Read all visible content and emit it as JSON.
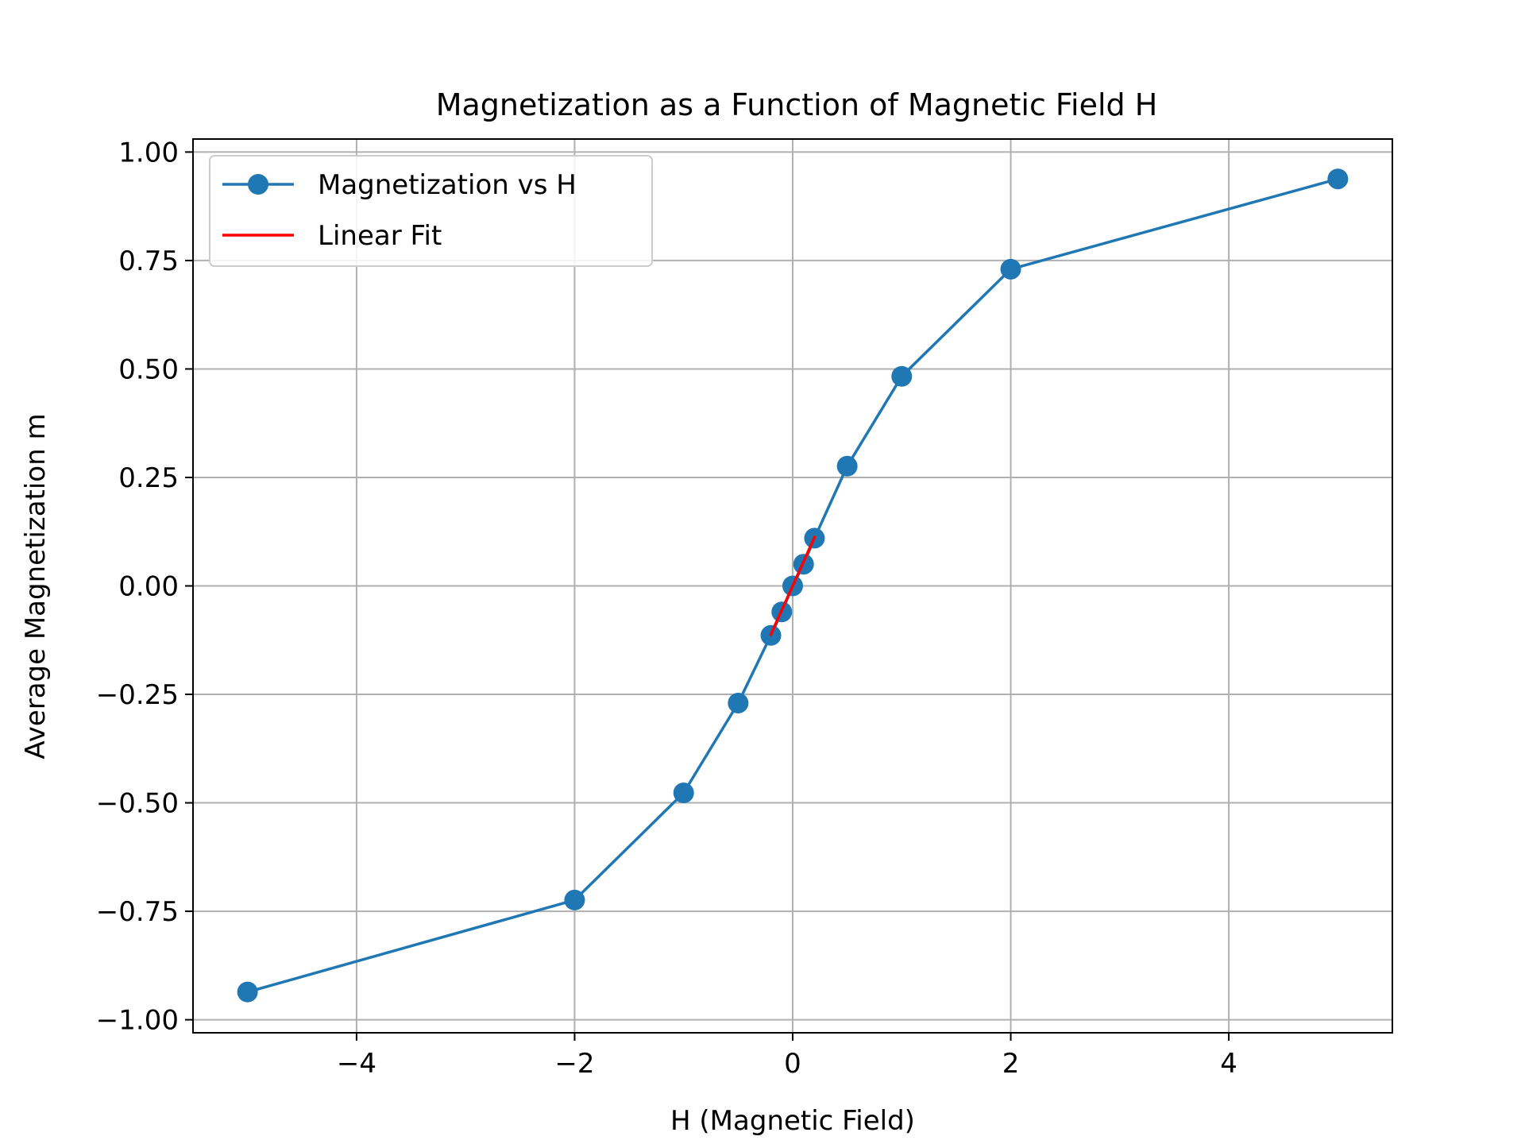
{
  "chart_data": {
    "type": "line",
    "title": "Magnetization as a Function of Magnetic Field H",
    "xlabel": "H (Magnetic Field)",
    "ylabel": "Average Magnetization m",
    "xlim": [
      -5.5,
      5.5
    ],
    "ylim": [
      -1.03,
      1.03
    ],
    "xticks": [
      -4,
      -2,
      0,
      2,
      4
    ],
    "xtick_labels": [
      "−4",
      "−2",
      "0",
      "2",
      "4"
    ],
    "yticks": [
      -1.0,
      -0.75,
      -0.5,
      -0.25,
      0.0,
      0.25,
      0.5,
      0.75,
      1.0
    ],
    "ytick_labels": [
      "−1.00",
      "−0.75",
      "−0.50",
      "−0.25",
      "0.00",
      "0.25",
      "0.50",
      "0.75",
      "1.00"
    ],
    "grid": true,
    "legend_position": "upper-left",
    "series": [
      {
        "name": "Magnetization vs H",
        "style": "line-marker",
        "color": "#1f77b4",
        "x": [
          -5,
          -2,
          -1,
          -0.5,
          -0.2,
          -0.1,
          0,
          0.1,
          0.2,
          0.5,
          1,
          2,
          5
        ],
        "y": [
          -0.936,
          -0.724,
          -0.477,
          -0.27,
          -0.114,
          -0.06,
          0.0,
          0.05,
          0.11,
          0.276,
          0.483,
          0.73,
          0.938
        ]
      },
      {
        "name": "Linear Fit",
        "style": "line",
        "color": "#ff0000",
        "x": [
          -0.2,
          0.2
        ],
        "y": [
          -0.112,
          0.112
        ]
      }
    ]
  }
}
